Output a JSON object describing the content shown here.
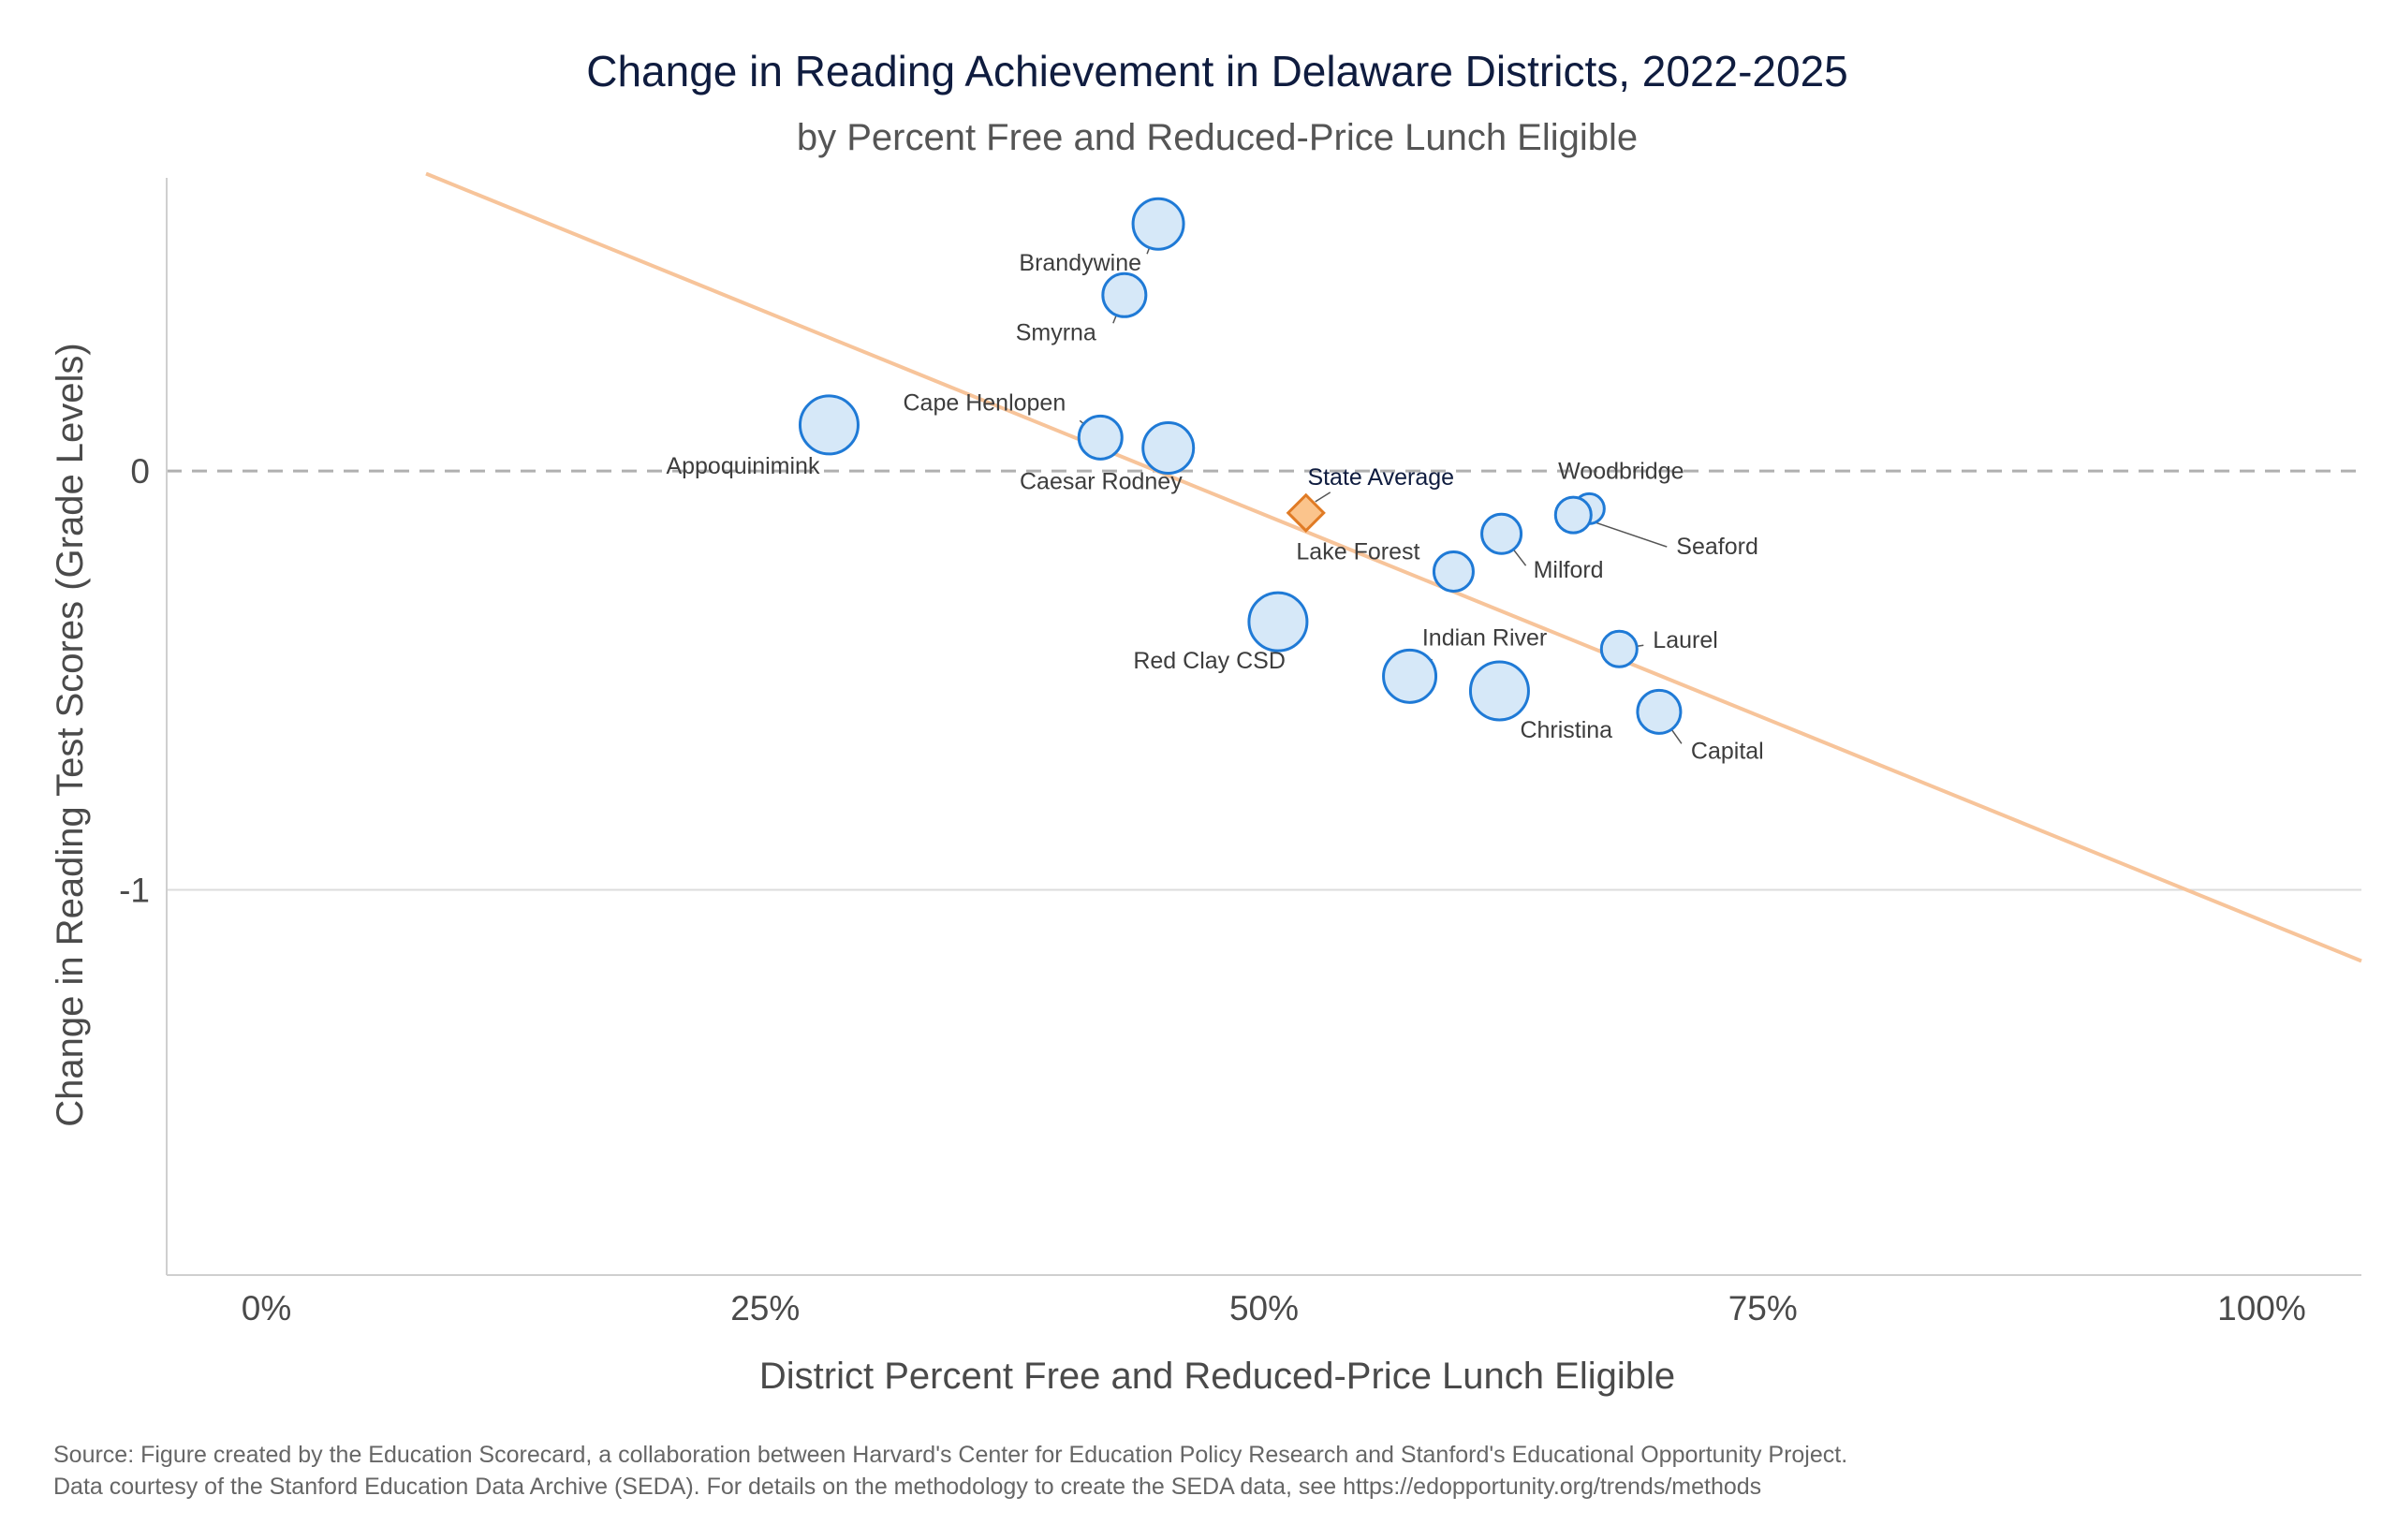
{
  "chart_data": {
    "type": "scatter",
    "title": "Change in Reading Achievement in Delaware Districts, 2022-2025",
    "subtitle": "by Percent Free and Reduced-Price Lunch Eligible",
    "xlabel": "District Percent Free and Reduced-Price Lunch Eligible",
    "ylabel": "Change in Reading Test Scores (Grade Levels)",
    "xlim": [
      -0.05,
      1.05
    ],
    "ylim": [
      -1.92,
      0.7
    ],
    "x_ticks": [
      {
        "value": 0,
        "label": "0%"
      },
      {
        "value": 0.25,
        "label": "25%"
      },
      {
        "value": 0.5,
        "label": "50%"
      },
      {
        "value": 0.75,
        "label": "75%"
      },
      {
        "value": 1.0,
        "label": "100%"
      }
    ],
    "y_ticks": [
      {
        "value": 0,
        "label": "0"
      },
      {
        "value": -1,
        "label": "-1"
      }
    ],
    "reference_line_y": 0,
    "trend_line": {
      "x": [
        0.08,
        1.05
      ],
      "y": [
        0.71,
        -1.17
      ],
      "color": "#f7c49a"
    },
    "colors": {
      "point_fill": "#d6e8f8",
      "point_stroke": "#1f7ad6",
      "state_fill": "#fbc48c",
      "state_stroke": "#e07b25",
      "gridline": "#dcdcdc",
      "reference_line": "#b0b0b0"
    },
    "series": [
      {
        "points": [
          {
            "label": "Brandywine",
            "x": 0.447,
            "y": 0.59,
            "size": 27
          },
          {
            "label": "Smyrna",
            "x": 0.43,
            "y": 0.42,
            "size": 23
          },
          {
            "label": "Appoquinimink",
            "x": 0.282,
            "y": 0.11,
            "size": 31
          },
          {
            "label": "Cape Henlopen",
            "x": 0.418,
            "y": 0.08,
            "size": 23
          },
          {
            "label": "Caesar Rodney",
            "x": 0.452,
            "y": 0.055,
            "size": 27
          },
          {
            "label": "Woodbridge",
            "x": 0.663,
            "y": -0.09,
            "size": 16
          },
          {
            "label": "Seaford",
            "x": 0.655,
            "y": -0.105,
            "size": 19
          },
          {
            "label": "Milford",
            "x": 0.619,
            "y": -0.15,
            "size": 21
          },
          {
            "label": "Lake Forest",
            "x": 0.595,
            "y": -0.24,
            "size": 21
          },
          {
            "label": "Red Clay CSD",
            "x": 0.507,
            "y": -0.36,
            "size": 31
          },
          {
            "label": "Laurel",
            "x": 0.678,
            "y": -0.425,
            "size": 19
          },
          {
            "label": "Indian River",
            "x": 0.573,
            "y": -0.49,
            "size": 28
          },
          {
            "label": "Christina",
            "x": 0.618,
            "y": -0.525,
            "size": 31
          },
          {
            "label": "Capital",
            "x": 0.698,
            "y": -0.575,
            "size": 23
          }
        ]
      }
    ],
    "state_average": {
      "label": "State Average",
      "x": 0.521,
      "y": -0.1
    }
  },
  "source_lines": [
    "Source: Figure created by the Education Scorecard, a collaboration between Harvard's Center for Education Policy Research and Stanford's Educational Opportunity Project.",
    "Data courtesy of the Stanford Education Data Archive (SEDA). For details on the methodology to create the SEDA data, see https://edopportunity.org/trends/methods"
  ]
}
